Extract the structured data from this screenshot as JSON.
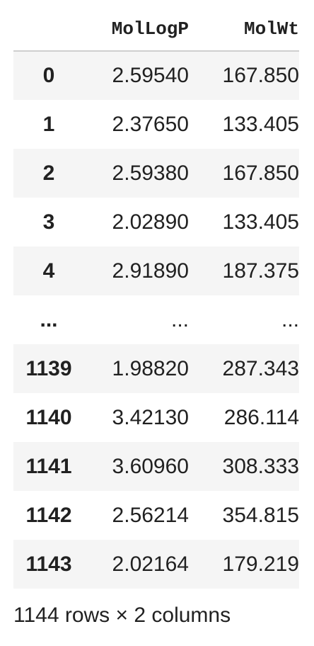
{
  "table": {
    "columns": [
      "MolLogP",
      "MolWt"
    ],
    "rows": [
      {
        "index": "0",
        "MolLogP": "2.59540",
        "MolWt": "167.850"
      },
      {
        "index": "1",
        "MolLogP": "2.37650",
        "MolWt": "133.405"
      },
      {
        "index": "2",
        "MolLogP": "2.59380",
        "MolWt": "167.850"
      },
      {
        "index": "3",
        "MolLogP": "2.02890",
        "MolWt": "133.405"
      },
      {
        "index": "4",
        "MolLogP": "2.91890",
        "MolWt": "187.375"
      },
      {
        "index": "...",
        "MolLogP": "...",
        "MolWt": "..."
      },
      {
        "index": "1139",
        "MolLogP": "1.98820",
        "MolWt": "287.343"
      },
      {
        "index": "1140",
        "MolLogP": "3.42130",
        "MolWt": "286.114"
      },
      {
        "index": "1141",
        "MolLogP": "3.60960",
        "MolWt": "308.333"
      },
      {
        "index": "1142",
        "MolLogP": "2.56214",
        "MolWt": "354.815"
      },
      {
        "index": "1143",
        "MolLogP": "2.02164",
        "MolWt": "179.219"
      }
    ]
  },
  "footer": {
    "shape_text": "1144 rows × 2 columns"
  },
  "colors": {
    "stripe": "#f5f5f5",
    "text": "#212121",
    "header_rule": "#cfcfcf"
  }
}
